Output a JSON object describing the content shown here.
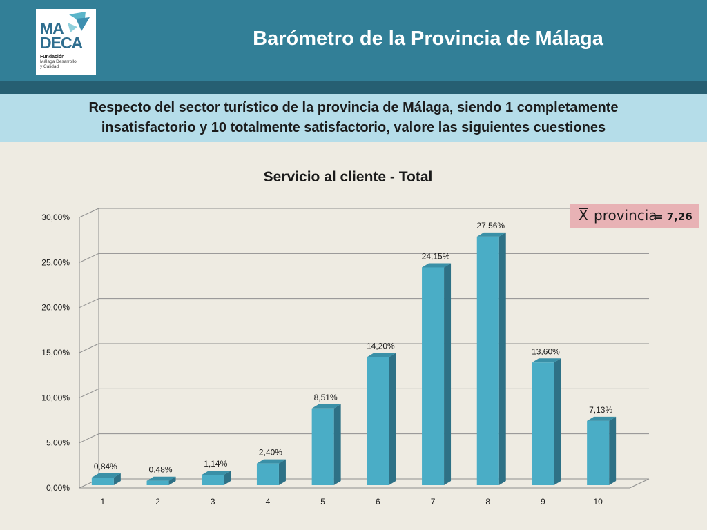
{
  "header": {
    "title": "Barómetro de la Provincia de Málaga",
    "logo": {
      "line1": "MA",
      "line2": "DECA",
      "org": "Fundación",
      "sub1": "Málaga Desarrollo",
      "sub2": "y Calidad",
      "color": "#2f6e8f"
    }
  },
  "question": "Respecto del sector turístico de la provincia de Málaga, siendo 1 completamente insatisfactorio y 10 totalmente satisfactorio, valore las siguientes cuestiones",
  "mean": {
    "symbol": "X",
    "label": "provincia",
    "value": "= 7,26"
  },
  "colors": {
    "header": "#327f97",
    "header_strip": "#265f72",
    "question_band": "#b5dde9",
    "bar_front": "#4aadc6",
    "bar_side": "#2e7186",
    "bar_top": "#3a90a7",
    "mean_badge": "#e8b2b5"
  },
  "chart_data": {
    "type": "bar",
    "title": "Servicio al cliente - Total",
    "categories": [
      "1",
      "2",
      "3",
      "4",
      "5",
      "6",
      "7",
      "8",
      "9",
      "10"
    ],
    "values": [
      0.84,
      0.48,
      1.14,
      2.4,
      8.51,
      14.2,
      24.15,
      27.56,
      13.6,
      7.13
    ],
    "data_labels": [
      "0,84%",
      "0,48%",
      "1,14%",
      "2,40%",
      "8,51%",
      "14,20%",
      "24,15%",
      "27,56%",
      "13,60%",
      "7,13%"
    ],
    "y_ticks": [
      0,
      5,
      10,
      15,
      20,
      25,
      30
    ],
    "y_tick_labels": [
      "0,00%",
      "5,00%",
      "10,00%",
      "15,00%",
      "20,00%",
      "25,00%",
      "30,00%"
    ],
    "ylim": [
      0,
      30
    ],
    "grid": true,
    "style": "3d-column"
  }
}
